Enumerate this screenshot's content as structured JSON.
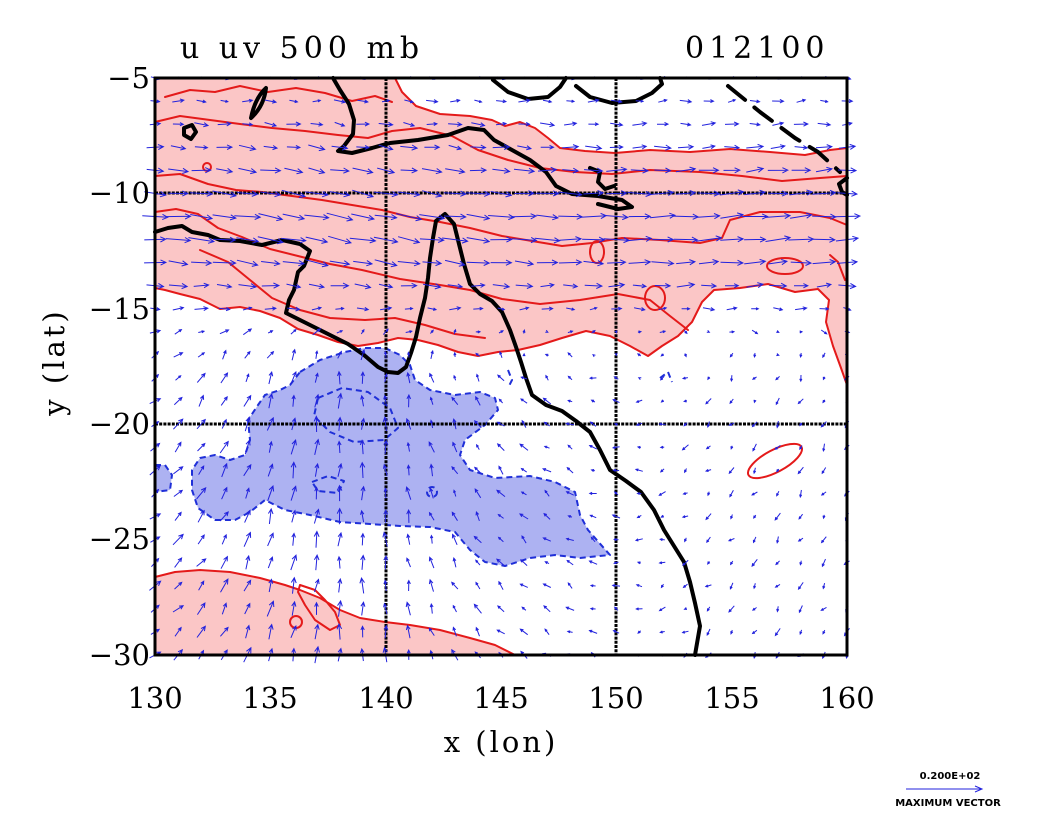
{
  "title": {
    "left": "u uv 500 mb",
    "right": "012100"
  },
  "axes": {
    "xlabel": "x (lon)",
    "ylabel": "y (lat)",
    "xticks": [
      "130",
      "135",
      "140",
      "145",
      "150",
      "155",
      "160"
    ],
    "yticks": [
      "−5",
      "−10",
      "−15",
      "−20",
      "−25",
      "−30"
    ],
    "xlim": [
      130,
      160
    ],
    "ylim": [
      -30,
      -5
    ],
    "grid": true
  },
  "legend": {
    "vector_magnitude": "0.200E+02",
    "vector_label": "MAXIMUM VECTOR"
  },
  "colors": {
    "positive_fill": "#fbc6c6",
    "positive_contour": "#e41a1a",
    "negative_fill": "#adb2f2",
    "negative_contour": "#1f2fd8",
    "vector": "#2222dd",
    "coastline": "#000000",
    "background": "#ffffff"
  }
}
